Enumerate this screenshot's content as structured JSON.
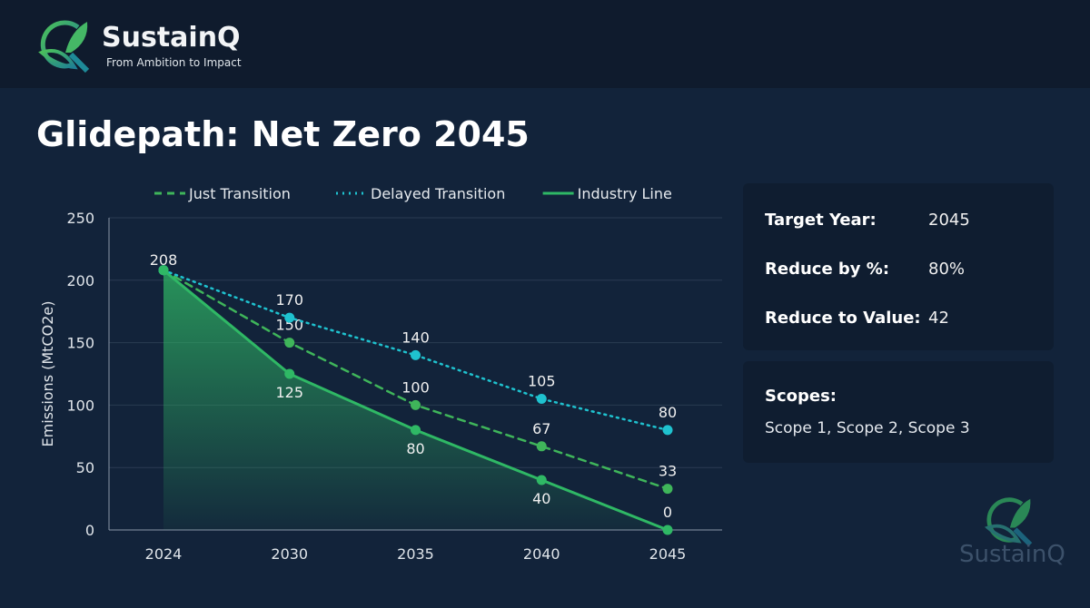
{
  "brand": {
    "name": "SustainQ",
    "tagline": "From Ambition to Impact"
  },
  "title": "Glidepath: Net Zero 2045",
  "targets": {
    "items": [
      {
        "label": "Target Year:",
        "value": "2045"
      },
      {
        "label": "Reduce by %:",
        "value": "80%"
      },
      {
        "label": "Reduce to Value:",
        "value": "42"
      }
    ]
  },
  "scopes": {
    "label": "Scopes:",
    "value": "Scope 1, Scope 2, Scope 3"
  },
  "watermark": "SustainQ",
  "colors": {
    "just": "#3fb55a",
    "delayed": "#1fc2cf",
    "industry": "#2fb865"
  },
  "chart_data": {
    "type": "line",
    "ylabel": "Emissions (MtCO2e)",
    "categories": [
      "2024",
      "2030",
      "2035",
      "2040",
      "2045"
    ],
    "ylim": [
      0,
      250
    ],
    "yticks": [
      0,
      50,
      100,
      150,
      200,
      250
    ],
    "grid": true,
    "legend": "top",
    "series": [
      {
        "name": "Just Transition",
        "style": "dashed",
        "values": [
          208,
          150,
          100,
          67,
          33
        ]
      },
      {
        "name": "Delayed Transition",
        "style": "dotted",
        "values": [
          208,
          170,
          140,
          105,
          80
        ]
      },
      {
        "name": "Industry Line",
        "style": "solid",
        "area": true,
        "values": [
          208,
          125,
          80,
          40,
          0
        ]
      }
    ]
  }
}
